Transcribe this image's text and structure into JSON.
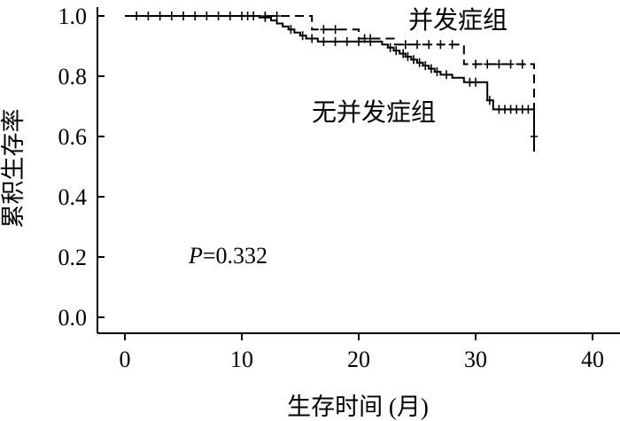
{
  "chart_data": {
    "type": "line",
    "title": "",
    "xlabel": "生存时间 (月)",
    "ylabel": "累积生存率",
    "xlim": [
      0,
      40
    ],
    "ylim": [
      0.0,
      1.0
    ],
    "x_ticks": [
      "0",
      "10",
      "20",
      "30",
      "40"
    ],
    "y_ticks": [
      "0.0",
      "0.2",
      "0.4",
      "0.6",
      "0.8",
      "1.0"
    ],
    "annotation": {
      "prefix": "P",
      "value": "=0.332"
    },
    "series": [
      {
        "name": "并发症组",
        "style": "dashed",
        "color": "#000000",
        "steps": [
          [
            0,
            1.0
          ],
          [
            16,
            0.955
          ],
          [
            20,
            0.925
          ],
          [
            23,
            0.905
          ],
          [
            29,
            0.84
          ],
          [
            35,
            0.6
          ]
        ],
        "censored": [
          [
            3,
            1.0
          ],
          [
            10,
            1.0
          ],
          [
            12,
            1.0
          ],
          [
            13,
            1.0
          ],
          [
            17,
            0.955
          ],
          [
            18,
            0.955
          ],
          [
            20.5,
            0.925
          ],
          [
            21,
            0.925
          ],
          [
            24,
            0.905
          ],
          [
            25,
            0.905
          ],
          [
            26,
            0.905
          ],
          [
            27,
            0.905
          ],
          [
            28,
            0.905
          ],
          [
            30,
            0.84
          ],
          [
            31,
            0.84
          ],
          [
            32,
            0.84
          ],
          [
            33,
            0.84
          ],
          [
            34,
            0.84
          ]
        ]
      },
      {
        "name": "无并发症组",
        "style": "solid",
        "color": "#000000",
        "steps": [
          [
            0,
            1.0
          ],
          [
            11.5,
            0.995
          ],
          [
            12.5,
            0.985
          ],
          [
            13,
            0.975
          ],
          [
            13.5,
            0.965
          ],
          [
            14,
            0.955
          ],
          [
            14.5,
            0.945
          ],
          [
            15,
            0.935
          ],
          [
            15.5,
            0.925
          ],
          [
            16.5,
            0.915
          ],
          [
            22,
            0.905
          ],
          [
            22.5,
            0.895
          ],
          [
            23,
            0.885
          ],
          [
            23.5,
            0.875
          ],
          [
            24,
            0.865
          ],
          [
            24.5,
            0.855
          ],
          [
            25,
            0.845
          ],
          [
            25.5,
            0.835
          ],
          [
            26,
            0.825
          ],
          [
            26.5,
            0.815
          ],
          [
            27,
            0.805
          ],
          [
            28,
            0.795
          ],
          [
            29,
            0.78
          ],
          [
            31,
            0.72
          ],
          [
            31.5,
            0.69
          ],
          [
            35,
            0.55
          ]
        ],
        "censored": [
          [
            1,
            1.0
          ],
          [
            2,
            1.0
          ],
          [
            4,
            1.0
          ],
          [
            5,
            1.0
          ],
          [
            6,
            1.0
          ],
          [
            7,
            1.0
          ],
          [
            8,
            1.0
          ],
          [
            9,
            1.0
          ],
          [
            10.5,
            1.0
          ],
          [
            11,
            1.0
          ],
          [
            12,
            0.995
          ],
          [
            14.2,
            0.955
          ],
          [
            15.2,
            0.935
          ],
          [
            16,
            0.925
          ],
          [
            17,
            0.915
          ],
          [
            18,
            0.915
          ],
          [
            19,
            0.915
          ],
          [
            20,
            0.915
          ],
          [
            21,
            0.915
          ],
          [
            22.7,
            0.895
          ],
          [
            23.2,
            0.885
          ],
          [
            23.8,
            0.875
          ],
          [
            24.2,
            0.865
          ],
          [
            24.7,
            0.855
          ],
          [
            25.2,
            0.845
          ],
          [
            25.7,
            0.835
          ],
          [
            26.2,
            0.825
          ],
          [
            26.7,
            0.815
          ],
          [
            27.5,
            0.805
          ],
          [
            29.5,
            0.78
          ],
          [
            30,
            0.78
          ],
          [
            31.2,
            0.72
          ],
          [
            32,
            0.69
          ],
          [
            32.5,
            0.69
          ],
          [
            33,
            0.69
          ],
          [
            33.5,
            0.69
          ],
          [
            34,
            0.69
          ],
          [
            34.5,
            0.69
          ],
          [
            35,
            0.6
          ]
        ]
      }
    ]
  }
}
